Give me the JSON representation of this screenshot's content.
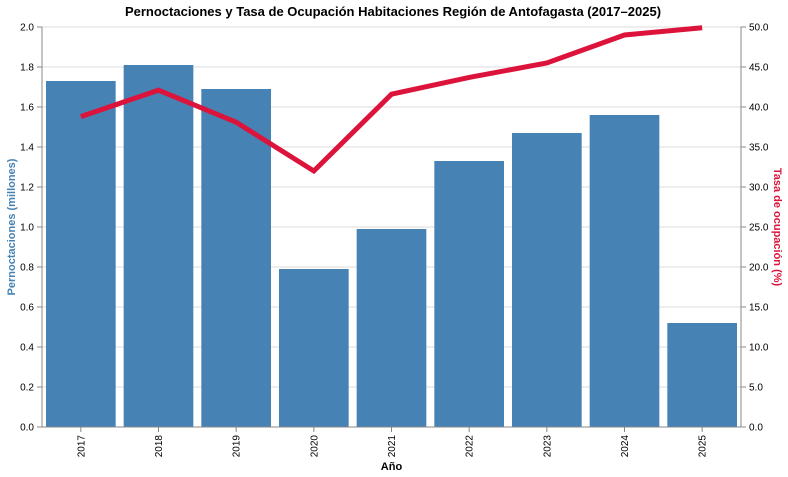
{
  "chart_data": {
    "type": "bar",
    "title": "Pernoctaciones y Tasa de Ocupación Habitaciones Región de Antofagasta (2017–2025)",
    "xlabel": "Año",
    "ylabel": "Pernoctaciones (millones)",
    "y2label": "Tasa de ocupación (%)",
    "categories": [
      "2017",
      "2018",
      "2019",
      "2020",
      "2021",
      "2022",
      "2023",
      "2024",
      "2025"
    ],
    "ylim": [
      0,
      2.0
    ],
    "y2lim": [
      0,
      50.0
    ],
    "yticks": [
      "0.0",
      "0.2",
      "0.4",
      "0.6",
      "0.8",
      "1.0",
      "1.2",
      "1.4",
      "1.6",
      "1.8",
      "2.0"
    ],
    "y2ticks": [
      "0.0",
      "5.0",
      "10.0",
      "15.0",
      "20.0",
      "25.0",
      "30.0",
      "35.0",
      "40.0",
      "45.0",
      "50.0"
    ],
    "grid": true,
    "series": [
      {
        "type": "bar",
        "axis": "left",
        "color": "#4682b4",
        "values": [
          1.73,
          1.81,
          1.69,
          0.79,
          0.99,
          1.33,
          1.47,
          1.56,
          0.52
        ]
      },
      {
        "type": "line",
        "axis": "right",
        "color": "#dc143c",
        "values": [
          38.8,
          42.1,
          38.1,
          32.0,
          41.6,
          43.7,
          45.5,
          49.0,
          49.9
        ]
      }
    ],
    "colors": {
      "left_axis": "#4682b4",
      "right_axis": "#dc143c"
    }
  }
}
